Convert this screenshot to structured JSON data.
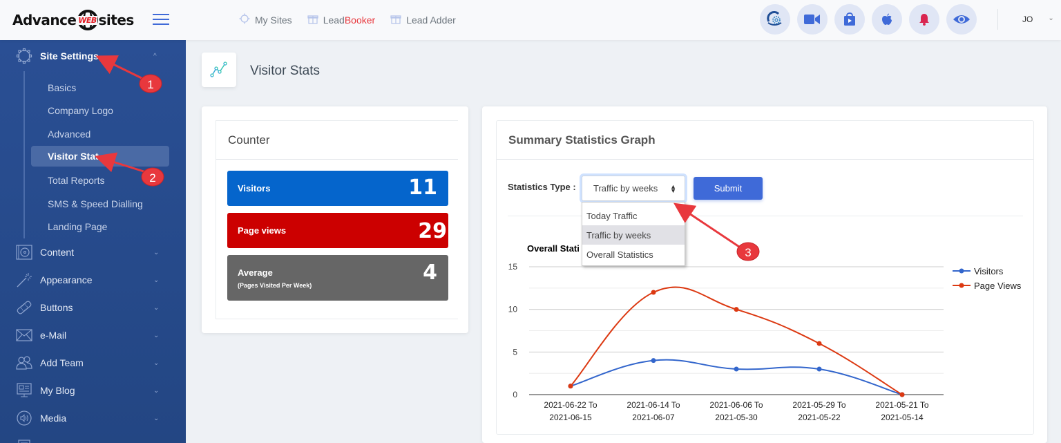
{
  "header": {
    "logo_left": "Advance",
    "logo_mid": "WEB",
    "logo_right": "sites",
    "nav": [
      {
        "label": "My Sites",
        "icon": "gear-outline-icon"
      },
      {
        "label_prefix": "Lead",
        "label_suffix": "Booker",
        "icon": "gift-icon"
      },
      {
        "label": "Lead Adder",
        "icon": "gift-icon"
      }
    ],
    "icons": [
      "site-settings-icon",
      "video-camera-icon",
      "play-store-icon",
      "apple-icon",
      "bell-icon",
      "eye-icon"
    ],
    "user_initials": "JO",
    "user_chevron": "⌄"
  },
  "sidebar": {
    "active_section": {
      "label": "Site Settings",
      "chevron": "^"
    },
    "sub_items": [
      {
        "label": "Basics"
      },
      {
        "label": "Company Logo"
      },
      {
        "label": "Advanced"
      },
      {
        "label": "Visitor Stat",
        "active": true
      },
      {
        "label": "Total Reports"
      },
      {
        "label": "SMS & Speed Dialling"
      },
      {
        "label": "Landing Page"
      }
    ],
    "sections": [
      {
        "label": "Content",
        "icon": "content-icon"
      },
      {
        "label": "Appearance",
        "icon": "magic-wand-icon"
      },
      {
        "label": "Buttons",
        "icon": "bandage-icon"
      },
      {
        "label": "e-Mail",
        "icon": "envelope-icon"
      },
      {
        "label": "Add Team",
        "icon": "team-icon"
      },
      {
        "label": "My Blog",
        "icon": "blog-icon"
      },
      {
        "label": "Media",
        "icon": "speaker-icon"
      }
    ],
    "chevron": "⌄"
  },
  "page": {
    "title": "Visitor Stats"
  },
  "counter": {
    "title": "Counter",
    "stats": [
      {
        "label": "Visitors",
        "value": "11",
        "color": "#0565cc"
      },
      {
        "label": "Page views",
        "value": "29",
        "color": "#cc0000"
      },
      {
        "label": "Average",
        "sublabel": "(Pages Visited Per Week)",
        "value": "4",
        "color": "#666666"
      }
    ]
  },
  "graph": {
    "title": "Summary Statistics Graph",
    "stats_type_label": "Statistics Type :",
    "select_value": "Traffic by weeks",
    "submit_label": "Submit",
    "dropdown_options": [
      "Today Traffic",
      "Traffic by weeks",
      "Overall Statistics"
    ],
    "selected_option_index": 1
  },
  "annotations": [
    {
      "number": "1"
    },
    {
      "number": "2"
    },
    {
      "number": "3"
    }
  ],
  "chart_data": {
    "type": "line",
    "title": "Overall Stati",
    "categories": [
      [
        "2021-06-22 To",
        "2021-06-15"
      ],
      [
        "2021-06-14 To",
        "2021-06-07"
      ],
      [
        "2021-06-06 To",
        "2021-05-30"
      ],
      [
        "2021-05-29 To",
        "2021-05-22"
      ],
      [
        "2021-05-21 To",
        "2021-05-14"
      ]
    ],
    "series": [
      {
        "name": "Visitors",
        "values": [
          1,
          4,
          3,
          3,
          0
        ],
        "color": "#3366cc"
      },
      {
        "name": "Page Views",
        "values": [
          1,
          12,
          10,
          6,
          0
        ],
        "color": "#dc3912"
      }
    ],
    "yticks": [
      0,
      5,
      10,
      15
    ],
    "ylim": [
      0,
      15
    ],
    "xlabel": "",
    "ylabel": "",
    "grid": true,
    "legend": "right",
    "smooth": true
  }
}
